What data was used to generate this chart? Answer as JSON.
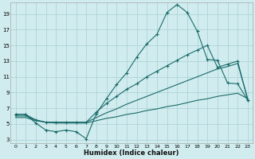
{
  "xlabel": "Humidex (Indice chaleur)",
  "bg_color": "#d1ecee",
  "grid_color": "#aed4d8",
  "line_color": "#1a6b6b",
  "xlim": [
    -0.5,
    23.5
  ],
  "ylim": [
    2.5,
    20.5
  ],
  "xticks": [
    0,
    1,
    2,
    3,
    4,
    5,
    6,
    7,
    8,
    9,
    10,
    11,
    12,
    13,
    14,
    15,
    16,
    17,
    18,
    19,
    20,
    21,
    22,
    23
  ],
  "yticks": [
    3,
    5,
    7,
    9,
    11,
    13,
    15,
    17,
    19
  ],
  "curve1_x": [
    0,
    1,
    2,
    3,
    4,
    5,
    6,
    7,
    8,
    9,
    10,
    11,
    12,
    13,
    14,
    15,
    16,
    17,
    18,
    19,
    20,
    21,
    22,
    23
  ],
  "curve1_y": [
    6.2,
    6.2,
    5.1,
    4.2,
    4.0,
    4.2,
    4.0,
    3.1,
    6.3,
    8.2,
    10.0,
    11.5,
    13.5,
    15.2,
    16.4,
    19.2,
    20.2,
    19.2,
    16.8,
    13.2,
    13.1,
    10.2,
    10.1,
    8.0
  ],
  "curve2_x": [
    0,
    1,
    2,
    3,
    4,
    5,
    6,
    7,
    8,
    9,
    10,
    11,
    12,
    13,
    14,
    15,
    16,
    17,
    18,
    19,
    20,
    21,
    22,
    23
  ],
  "curve2_y": [
    6.2,
    6.2,
    5.5,
    5.2,
    5.2,
    5.2,
    5.2,
    5.2,
    6.5,
    7.6,
    8.5,
    9.4,
    10.1,
    11.0,
    11.7,
    12.4,
    13.1,
    13.8,
    14.4,
    15.0,
    12.2,
    12.6,
    13.0,
    8.0
  ],
  "curve3_x": [
    0,
    1,
    2,
    3,
    4,
    5,
    6,
    7,
    8,
    9,
    10,
    11,
    12,
    13,
    14,
    15,
    16,
    17,
    18,
    19,
    20,
    21,
    22,
    23
  ],
  "curve3_y": [
    6.0,
    6.0,
    5.5,
    5.2,
    5.2,
    5.2,
    5.2,
    5.2,
    5.8,
    6.4,
    6.9,
    7.5,
    8.0,
    8.5,
    9.0,
    9.5,
    10.0,
    10.5,
    11.0,
    11.5,
    12.0,
    12.3,
    12.7,
    8.2
  ],
  "curve4_x": [
    0,
    1,
    2,
    3,
    4,
    5,
    6,
    7,
    8,
    9,
    10,
    11,
    12,
    13,
    14,
    15,
    16,
    17,
    18,
    19,
    20,
    21,
    22,
    23
  ],
  "curve4_y": [
    5.8,
    5.8,
    5.4,
    5.2,
    5.1,
    5.1,
    5.1,
    5.1,
    5.4,
    5.7,
    5.9,
    6.2,
    6.4,
    6.7,
    6.9,
    7.2,
    7.4,
    7.7,
    8.0,
    8.2,
    8.5,
    8.7,
    8.9,
    8.2
  ]
}
